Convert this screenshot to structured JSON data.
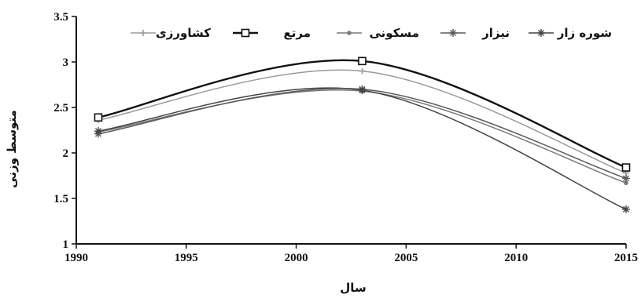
{
  "chart_data": {
    "type": "line",
    "xlabel": "سال",
    "ylabel": "متوسط وزنی",
    "xlim": [
      1990,
      2015
    ],
    "ylim": [
      1,
      3.5
    ],
    "xticks": [
      1990,
      1995,
      2000,
      2005,
      2010,
      2015
    ],
    "yticks": [
      1,
      1.5,
      2,
      2.5,
      3,
      3.5
    ],
    "x": [
      1991,
      2003,
      2015
    ],
    "legend_position": "top",
    "grid": false,
    "series": [
      {
        "name": "کشاورزی",
        "values": [
          2.36,
          2.9,
          1.78
        ],
        "color": "#9a9a9a",
        "marker": "plus"
      },
      {
        "name": "مرتع",
        "values": [
          2.39,
          3.01,
          1.84
        ],
        "color": "#111111",
        "marker": "square"
      },
      {
        "name": "مسکونی",
        "values": [
          2.23,
          2.68,
          1.67
        ],
        "color": "#7a7a7a",
        "marker": "dot"
      },
      {
        "name": "نیزار",
        "values": [
          2.21,
          2.7,
          1.72
        ],
        "color": "#5a5a5a",
        "marker": "star"
      },
      {
        "name": "شوره زار",
        "values": [
          2.24,
          2.69,
          1.38
        ],
        "color": "#444444",
        "marker": "star"
      }
    ]
  }
}
